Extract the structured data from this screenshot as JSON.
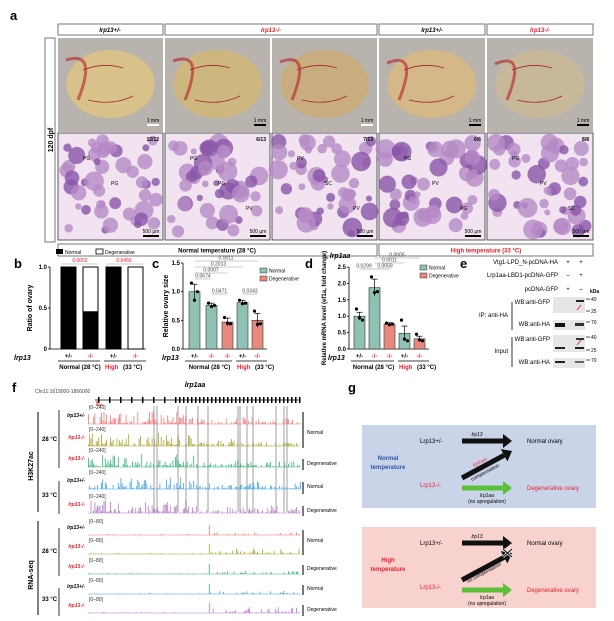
{
  "panel_labels": {
    "a": "a",
    "b": "b",
    "c": "c",
    "d": "d",
    "e": "e",
    "f": "f",
    "g": "g"
  },
  "panel_a": {
    "headers": [
      "lrp13+/-",
      "lrp13-/-",
      "lrp13+/-",
      "lrp13-/-"
    ],
    "side_label": "120 dpf",
    "scale_photo": "1 mm",
    "scale_histo": "500 µm",
    "counts": [
      "12/12",
      "6/13",
      "7/13",
      "6/6",
      "8/8"
    ],
    "annotations": [
      [
        "PG",
        "PG"
      ],
      [
        "PG",
        "PG",
        "PV"
      ],
      [
        "PV",
        "SC",
        "PV"
      ],
      [
        "PG",
        "PV",
        "PG"
      ],
      [
        "PG",
        "PV",
        "SC"
      ]
    ],
    "temp_normal": "Normal temperature (28 °C)",
    "temp_high": "High temperature (33 °C)",
    "colors": {
      "mutant_text": "#e8202a",
      "photo": "#d9c28a",
      "histo": "#b48cc4"
    }
  },
  "common": {
    "gene_label": "lrp13",
    "genotypes": [
      "+/-",
      "-/-",
      "-/-",
      "+/-",
      "-/-"
    ],
    "normal_group": "Normal (28 °C)",
    "high_word": "High",
    "high_rest": "(33 °C)",
    "legend_normal": "Normal",
    "legend_degenerative": "Degenerative"
  },
  "chart_data": [
    {
      "type": "bar",
      "stacked": true,
      "ylabel": "Ratio of ovary",
      "ylim": [
        0,
        1.0
      ],
      "yticks": [
        "0",
        "0.5",
        "1.0"
      ],
      "categories": [
        "+/- Normal (28 °C)",
        "-/- Normal (28 °C)",
        "+/- High (33 °C)",
        "-/- High (33 °C)"
      ],
      "series": [
        {
          "name": "Normal",
          "values": [
            1.0,
            0.46,
            1.0,
            0.0
          ],
          "color": "#000000"
        },
        {
          "name": "Degenerative",
          "values": [
            0.0,
            0.54,
            0.0,
            1.0
          ],
          "color": "#ffffff"
        }
      ],
      "pvalues": [
        "0.0052",
        "0.0456"
      ],
      "legend": "top"
    },
    {
      "type": "bar",
      "ylabel": "Relative ovary size",
      "ylim": [
        0,
        1.5
      ],
      "yticks": [
        "0.0",
        "0.5",
        "1.0",
        "1.5"
      ],
      "categories": [
        "+/- 28",
        "-/- 28",
        "-/- 28",
        "+/- 33",
        "-/- 33"
      ],
      "values": [
        1.0,
        0.76,
        0.47,
        0.81,
        0.5
      ],
      "errors": [
        0.13,
        0.04,
        0.07,
        0.04,
        0.12
      ],
      "points": [
        [
          1.15,
          0.85,
          1.0
        ],
        [
          0.8,
          0.74,
          0.76
        ],
        [
          0.55,
          0.45,
          0.44
        ],
        [
          0.85,
          0.79,
          0.8
        ],
        [
          0.66,
          0.43,
          0.44
        ]
      ],
      "groups": [
        "Normal",
        "Normal",
        "Degenerative",
        "Normal",
        "Degenerative"
      ],
      "colors": {
        "Normal": "#8fc1b5",
        "Degenerative": "#e8897e"
      },
      "pvalues": [
        {
          "label": "0.0011",
          "from": 0,
          "to": 4
        },
        {
          "label": "0.2013",
          "from": 0,
          "to": 3
        },
        {
          "label": "0.0007",
          "from": 0,
          "to": 2
        },
        {
          "label": "0.0674",
          "from": 0,
          "to": 1
        },
        {
          "label": "0.0471",
          "from": 1,
          "to": 2
        },
        {
          "label": "0.0343",
          "from": 3,
          "to": 4
        }
      ],
      "legend": "top-right"
    },
    {
      "type": "bar",
      "title": "lrp1aa",
      "ylabel": "Relative mRNA level/ (ef1a, fold change)",
      "ylim": [
        0,
        2.5
      ],
      "yticks": [
        "0.0",
        "0.5",
        "1.0",
        "1.5",
        "2.0",
        "2.5"
      ],
      "categories": [
        "+/- 28",
        "-/- 28",
        "-/- 28",
        "+/- 33",
        "-/- 33"
      ],
      "values": [
        1.0,
        1.87,
        0.76,
        0.48,
        0.31
      ],
      "errors": [
        0.12,
        0.26,
        0.04,
        0.22,
        0.08
      ],
      "points": [
        [
          1.22,
          0.95,
          0.88
        ],
        [
          2.2,
          1.72,
          1.75
        ],
        [
          0.79,
          0.74,
          0.76
        ],
        [
          0.88,
          0.3,
          0.25
        ],
        [
          0.45,
          0.28,
          0.25
        ]
      ],
      "groups": [
        "Normal",
        "Normal",
        "Degenerative",
        "Normal",
        "Degenerative"
      ],
      "colors": {
        "Normal": "#8fc1b5",
        "Degenerative": "#e8897e"
      },
      "pvalues": [
        {
          "label": "0.0005",
          "from": 1,
          "to": 4
        },
        {
          "label": "0.0011",
          "from": 1,
          "to": 3
        },
        {
          "label": "0.0299",
          "from": 0,
          "to": 1
        },
        {
          "label": "0.0059",
          "from": 1,
          "to": 2
        }
      ],
      "legend": "top-right"
    }
  ],
  "panel_e": {
    "constructs": [
      {
        "name": "Vtg1-LPD_N-pcDNA-HA",
        "lanes": [
          "+",
          "+"
        ]
      },
      {
        "name": "Lrp1aa-LBD1-pcDNA-GFP",
        "lanes": [
          "–",
          "+"
        ]
      },
      {
        "name": "pcDNA-GFP",
        "lanes": [
          "+",
          "–"
        ]
      }
    ],
    "kda": "kDa",
    "ip_label": "IP: anti-HA",
    "input_label": "Input",
    "blots": [
      {
        "label": "WB:anti-GFP",
        "markers": [
          "40",
          "25"
        ]
      },
      {
        "label": "WB:anti-HA",
        "markers": [
          "70"
        ]
      },
      {
        "label": "WB:anti-GFP",
        "markers": [
          "40",
          "25"
        ]
      },
      {
        "label": "WB:anti-HA",
        "markers": [
          "70"
        ]
      }
    ]
  },
  "panel_f": {
    "locus": "Chr11:1619000-1866000",
    "gene": "lrp1aa",
    "mark_h3k27ac": "H3K27ac",
    "mark_rnaseq": "RNA-seq",
    "temp_28": "28 °C",
    "temp_33": "33 °C",
    "h3k27ac_range": "[0–240]",
    "rnaseq_range": "[0–80]",
    "tracks": [
      {
        "genotype": "lrp13+/-",
        "color": "#f07777"
      },
      {
        "genotype": "lrp13-/-",
        "color": "#a9a22a"
      },
      {
        "genotype": "lrp13-/-",
        "color": "#33b477"
      },
      {
        "genotype": "lrp13+/-",
        "color": "#3ba3e2"
      },
      {
        "genotype": "lrp13-/-",
        "color": "#b67ac6"
      }
    ],
    "phenotypes": [
      "Normal",
      "Degenerative",
      "Normal",
      "Degenerative"
    ]
  },
  "panel_g": {
    "normal_temp": [
      "Normal",
      "temperature"
    ],
    "high_temp": [
      "High",
      "temperature"
    ],
    "het": "Lrp13+/-",
    "ko": "Lrp13-/-",
    "lrp13": "lrp13",
    "lrp1aa_up": "lrp1aa↑",
    "compensation": "compensation",
    "no_compensation": "no compensation",
    "lrp1aa": "lrp1aa",
    "no_upregulation": "(no upregulation)",
    "normal_ovary": "Normal ovary",
    "degenerative_ovary": "Degenerative ovary",
    "colors": {
      "normal_box": "#cad4e8",
      "high_box": "#f7d2cf",
      "blue_text": "#2a55b0",
      "red_text": "#e8202a",
      "green_arrow": "#5cbf3a"
    }
  }
}
